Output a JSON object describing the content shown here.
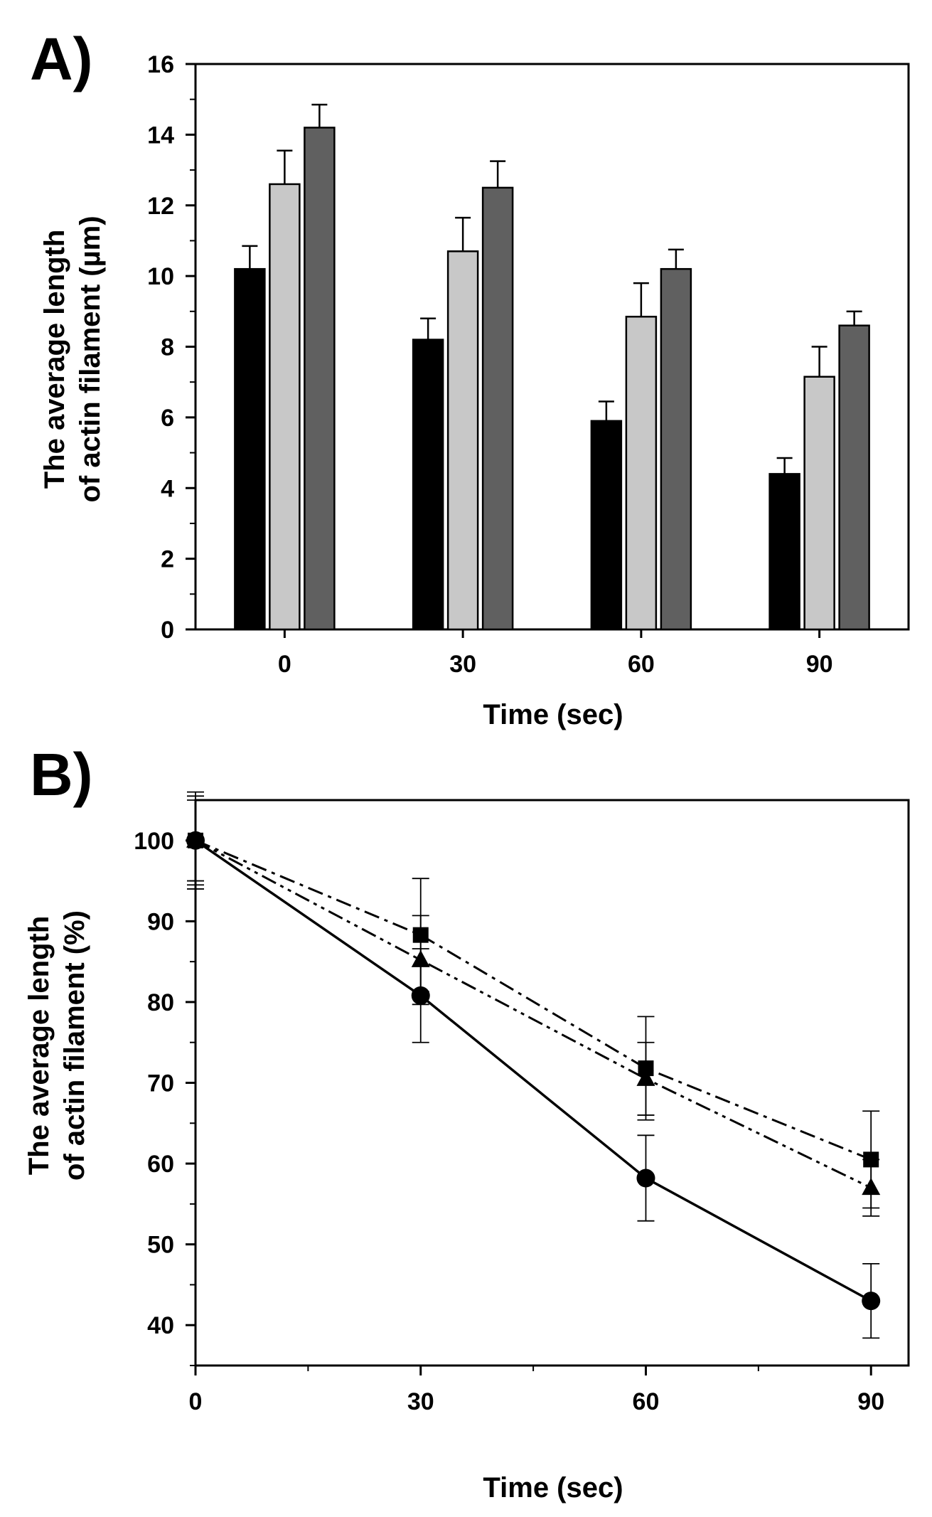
{
  "chart_data": [
    {
      "panel": "A)",
      "type": "bar",
      "xlabel": "Time (sec)",
      "ylabel_lines": [
        "The average length",
        "of actin filament (µm)"
      ],
      "ylim": [
        0,
        16
      ],
      "yticks": [
        0,
        2,
        4,
        6,
        8,
        10,
        12,
        14,
        16
      ],
      "categories": [
        "0",
        "30",
        "60",
        "90"
      ],
      "series": [
        {
          "name": "black",
          "color": "#000000",
          "values": [
            10.2,
            8.2,
            5.9,
            4.4
          ],
          "errors": [
            0.65,
            0.6,
            0.55,
            0.45
          ]
        },
        {
          "name": "light-gray",
          "color": "#c8c8c8",
          "values": [
            12.6,
            10.7,
            8.85,
            7.15
          ],
          "errors": [
            0.95,
            0.95,
            0.95,
            0.85
          ]
        },
        {
          "name": "dark-gray",
          "color": "#606060",
          "values": [
            14.2,
            12.5,
            10.2,
            8.6
          ],
          "errors": [
            0.65,
            0.75,
            0.55,
            0.4
          ]
        }
      ]
    },
    {
      "panel": "B)",
      "type": "line",
      "xlabel": "Time (sec)",
      "ylabel_lines": [
        "The average length",
        "of actin filament (%)"
      ],
      "xlim": [
        0,
        95
      ],
      "ylim": [
        35,
        105
      ],
      "xticks": [
        0,
        30,
        60,
        90
      ],
      "yticks": [
        40,
        50,
        60,
        70,
        80,
        90,
        100
      ],
      "x": [
        0,
        30,
        60,
        90
      ],
      "series": [
        {
          "name": "circle-solid",
          "marker": "circle",
          "dash": "solid",
          "values": [
            100,
            80.8,
            58.2,
            43.0
          ],
          "errors": [
            6.0,
            5.8,
            5.3,
            4.6
          ]
        },
        {
          "name": "square-dashdot",
          "marker": "square",
          "dash": "dashdot",
          "values": [
            100,
            88.3,
            71.8,
            60.5
          ],
          "errors": [
            5.5,
            7.0,
            6.4,
            6.0
          ]
        },
        {
          "name": "triangle-dashdotdot",
          "marker": "triangle",
          "dash": "dashdotdot",
          "values": [
            100,
            85.2,
            70.5,
            57.0
          ],
          "errors": [
            5.0,
            5.5,
            4.5,
            3.5
          ]
        }
      ]
    }
  ]
}
